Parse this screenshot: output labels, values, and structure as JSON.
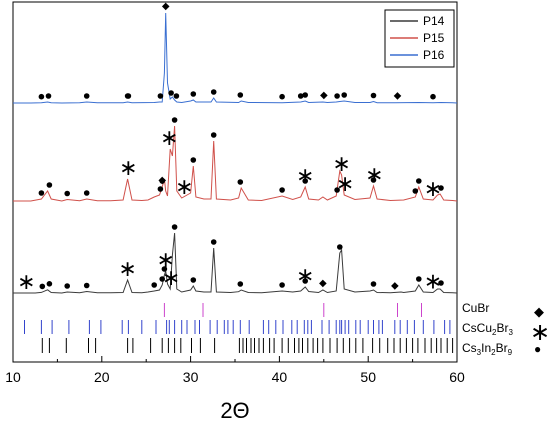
{
  "chart_data": {
    "type": "line",
    "xlabel": "2Θ",
    "xlim": [
      10,
      60
    ],
    "x_ticks": [
      10,
      20,
      30,
      40,
      50,
      60
    ],
    "x_tick_labels": [
      "10",
      "20",
      "30",
      "40",
      "50",
      "60"
    ],
    "legend_position": "top-right",
    "series": [
      {
        "name": "P14",
        "color": "#3a3a3a",
        "x": [
          10,
          11.5,
          12.5,
          13.2,
          13.9,
          14.3,
          15.5,
          16.1,
          17.5,
          18.3,
          19.5,
          21,
          22.4,
          22.9,
          23.4,
          24.5,
          25.2,
          25.9,
          26.5,
          26.8,
          27.05,
          27.2,
          27.4,
          27.7,
          27.95,
          28.2,
          28.45,
          29,
          30.0,
          30.3,
          30.6,
          31.5,
          32.3,
          32.6,
          32.9,
          34.5,
          35.4,
          35.7,
          36.5,
          38,
          40.3,
          41.5,
          42.4,
          42.9,
          43.3,
          44.4,
          44.9,
          45.4,
          46.4,
          46.8,
          47.0,
          47.3,
          48.5,
          50.2,
          50.6,
          51,
          52.5,
          53.7,
          54,
          55.3,
          55.7,
          56.2,
          57.3,
          57.8,
          58.1,
          58.5,
          59.5,
          60
        ],
        "y": [
          0,
          0,
          0,
          0.6,
          3.2,
          0.5,
          0,
          1,
          0.3,
          1.5,
          0.3,
          0.2,
          0.5,
          13,
          0.5,
          0.3,
          1,
          2,
          3,
          8,
          18,
          22,
          9,
          4,
          38,
          60,
          4,
          1,
          3,
          7,
          2,
          1,
          1,
          45,
          1,
          0.5,
          1.3,
          3,
          0.5,
          0.3,
          2,
          1,
          2,
          6,
          1.5,
          0.5,
          3,
          0.5,
          2,
          40,
          43,
          4,
          1,
          2,
          3,
          0.5,
          0.3,
          1,
          0.5,
          2,
          8,
          1,
          0.5,
          4,
          4,
          0.5,
          0.3,
          0
        ]
      },
      {
        "name": "P15",
        "color": "#d0504a",
        "x": [
          10,
          12,
          13.2,
          13.9,
          14.3,
          15.5,
          16.1,
          17.5,
          18.3,
          19.5,
          21,
          22.4,
          22.9,
          23.4,
          24.5,
          25.2,
          25.9,
          26.5,
          26.8,
          27.05,
          27.2,
          27.4,
          27.7,
          27.95,
          28.2,
          28.45,
          29,
          30.0,
          30.3,
          30.6,
          31.5,
          32.3,
          32.6,
          32.9,
          34.5,
          35.4,
          35.7,
          36.5,
          38,
          40.3,
          41.5,
          42.4,
          42.9,
          43.3,
          44.4,
          44.9,
          45.4,
          46.4,
          46.8,
          47.0,
          47.3,
          48.5,
          50.2,
          50.6,
          51,
          52.5,
          54,
          55.3,
          55.7,
          56.2,
          57.3,
          57.8,
          58.1,
          58.5,
          59.5,
          60
        ],
        "y": [
          0,
          0,
          2,
          10,
          2,
          0,
          1.5,
          0.3,
          2,
          0.3,
          0.3,
          1,
          22,
          1,
          0.5,
          1,
          4,
          6,
          14,
          22,
          10,
          5,
          52,
          45,
          75,
          10,
          3,
          8,
          35,
          4,
          2,
          2,
          60,
          2,
          1,
          3,
          13,
          1,
          0.5,
          5,
          1.5,
          4,
          14,
          2,
          1,
          4,
          1,
          5,
          30,
          26,
          6,
          1.5,
          3,
          15,
          2,
          0.5,
          1,
          4,
          14,
          2,
          1,
          6,
          7,
          1,
          0.5,
          0
        ]
      },
      {
        "name": "P16",
        "color": "#3a6fd1",
        "x": [
          10,
          12,
          13.2,
          13.9,
          14.3,
          15.5,
          17.5,
          18.3,
          19.5,
          21,
          22.4,
          22.9,
          23.4,
          25.9,
          26.5,
          26.8,
          27.05,
          27.2,
          27.4,
          27.7,
          27.95,
          28.2,
          28.45,
          29,
          30.0,
          30.3,
          30.6,
          32.3,
          32.6,
          32.9,
          35.4,
          35.7,
          36.5,
          40.3,
          42.4,
          42.9,
          43.3,
          44.9,
          45.4,
          46.4,
          46.8,
          47.3,
          48.5,
          50.2,
          50.6,
          51,
          53,
          55.7,
          57.3,
          58.2,
          59.5,
          60
        ],
        "y": [
          0,
          0,
          0.3,
          1,
          0.3,
          0,
          0.3,
          1,
          0.2,
          0.2,
          0.3,
          1,
          0.3,
          0.5,
          1,
          1,
          30,
          90,
          20,
          4,
          6,
          3,
          1,
          0.5,
          2,
          3,
          1,
          1,
          5,
          1,
          0.5,
          2,
          0.5,
          0.3,
          1,
          2,
          0.5,
          1,
          0.5,
          1,
          1.5,
          2,
          0.5,
          0.5,
          1.5,
          0.3,
          0.3,
          0.5,
          0.3,
          0.5,
          0.2,
          0
        ]
      }
    ],
    "markers": {
      "P14": {
        "dots": [
          13.3,
          14.1,
          16.1,
          18.3,
          25.9,
          26.8,
          27.05,
          28.2,
          30.3,
          32.6,
          35.6,
          40.3,
          42.9,
          46.8,
          50.6,
          55.7,
          58.2
        ],
        "stars": [
          11.5,
          22.9,
          27.2,
          27.8,
          42.9,
          57.3
        ],
        "diamonds": [
          44.9,
          53.0
        ]
      },
      "P15": {
        "dots": [
          13.2,
          14.1,
          16.1,
          18.3,
          26.6,
          26.8,
          28.2,
          30.3,
          32.6,
          35.6,
          40.3,
          42.9,
          46.5,
          50.6,
          55.3,
          55.7,
          58.2
        ],
        "stars": [
          23.0,
          27.6,
          29.3,
          42.9,
          47.0,
          47.4,
          50.7,
          57.3
        ],
        "diamonds": [
          26.8
        ]
      },
      "P16": {
        "dots": [
          13.2,
          14.0,
          18.3,
          22.9,
          23.0,
          26.6,
          27.8,
          28.4,
          30.3,
          32.6,
          35.6,
          40.3,
          42.4,
          42.9,
          46.5,
          47.3,
          50.6,
          57.3
        ],
        "stars": [],
        "diamonds": [
          27.2,
          45.0,
          53.3
        ]
      }
    },
    "references": [
      {
        "name": "CuBr",
        "symbol": "diamond",
        "color": "#cc44cc",
        "positions": [
          27.05,
          31.4,
          45.0,
          53.3,
          56.0
        ]
      },
      {
        "name": "CsCu2Br3",
        "symbol": "star",
        "color": "#3344cc",
        "positions": [
          11.3,
          13.2,
          14.4,
          16.3,
          18.6,
          19.9,
          22.3,
          23.0,
          24.5,
          26.1,
          27.3,
          27.6,
          28.2,
          29.0,
          29.6,
          30.5,
          31.0,
          32.2,
          33.0,
          33.8,
          34.2,
          34.8,
          35.6,
          36.6,
          38.2,
          38.8,
          39.6,
          40.4,
          41.4,
          42.0,
          42.8,
          43.2,
          43.6,
          44.8,
          45.6,
          46.4,
          46.8,
          47.0,
          47.4,
          47.8,
          48.6,
          49.1,
          50.0,
          50.6,
          51.2,
          51.6,
          53.0,
          53.6,
          54.4,
          55.2,
          56.2,
          57.4,
          58.6,
          59.2
        ]
      },
      {
        "name": "Cs3In2Br9",
        "symbol": "dot",
        "color": "#000000",
        "positions": [
          13.3,
          14.1,
          16.0,
          18.5,
          19.3,
          22.9,
          23.5,
          25.5,
          26.8,
          27.5,
          28.2,
          28.9,
          30.1,
          31.1,
          32.7,
          35.5,
          35.9,
          36.3,
          36.8,
          37.2,
          37.7,
          38.2,
          38.9,
          39.4,
          40.3,
          41.0,
          41.7,
          42.2,
          42.6,
          43.2,
          43.8,
          44.3,
          44.9,
          45.7,
          46.5,
          47.2,
          47.9,
          48.6,
          49.4,
          50.5,
          51.3,
          52.2,
          52.9,
          53.6,
          54.3,
          55.0,
          55.6,
          56.4,
          57.1,
          57.7,
          58.2,
          58.9,
          59.5
        ]
      }
    ],
    "ref_labels": {
      "cubr": "CuBr",
      "cs_base": "CsCu",
      "cs_sub1": "2",
      "cs_mid": "Br",
      "cs_sub2": "3",
      "cin_base": "Cs",
      "cin_sub1": "3",
      "cin_mid1": "In",
      "cin_sub2": "2",
      "cin_mid2": "Br",
      "cin_sub3": "9"
    },
    "symbols": {
      "diamond": "◆",
      "star": "∗",
      "dot": "●"
    }
  }
}
